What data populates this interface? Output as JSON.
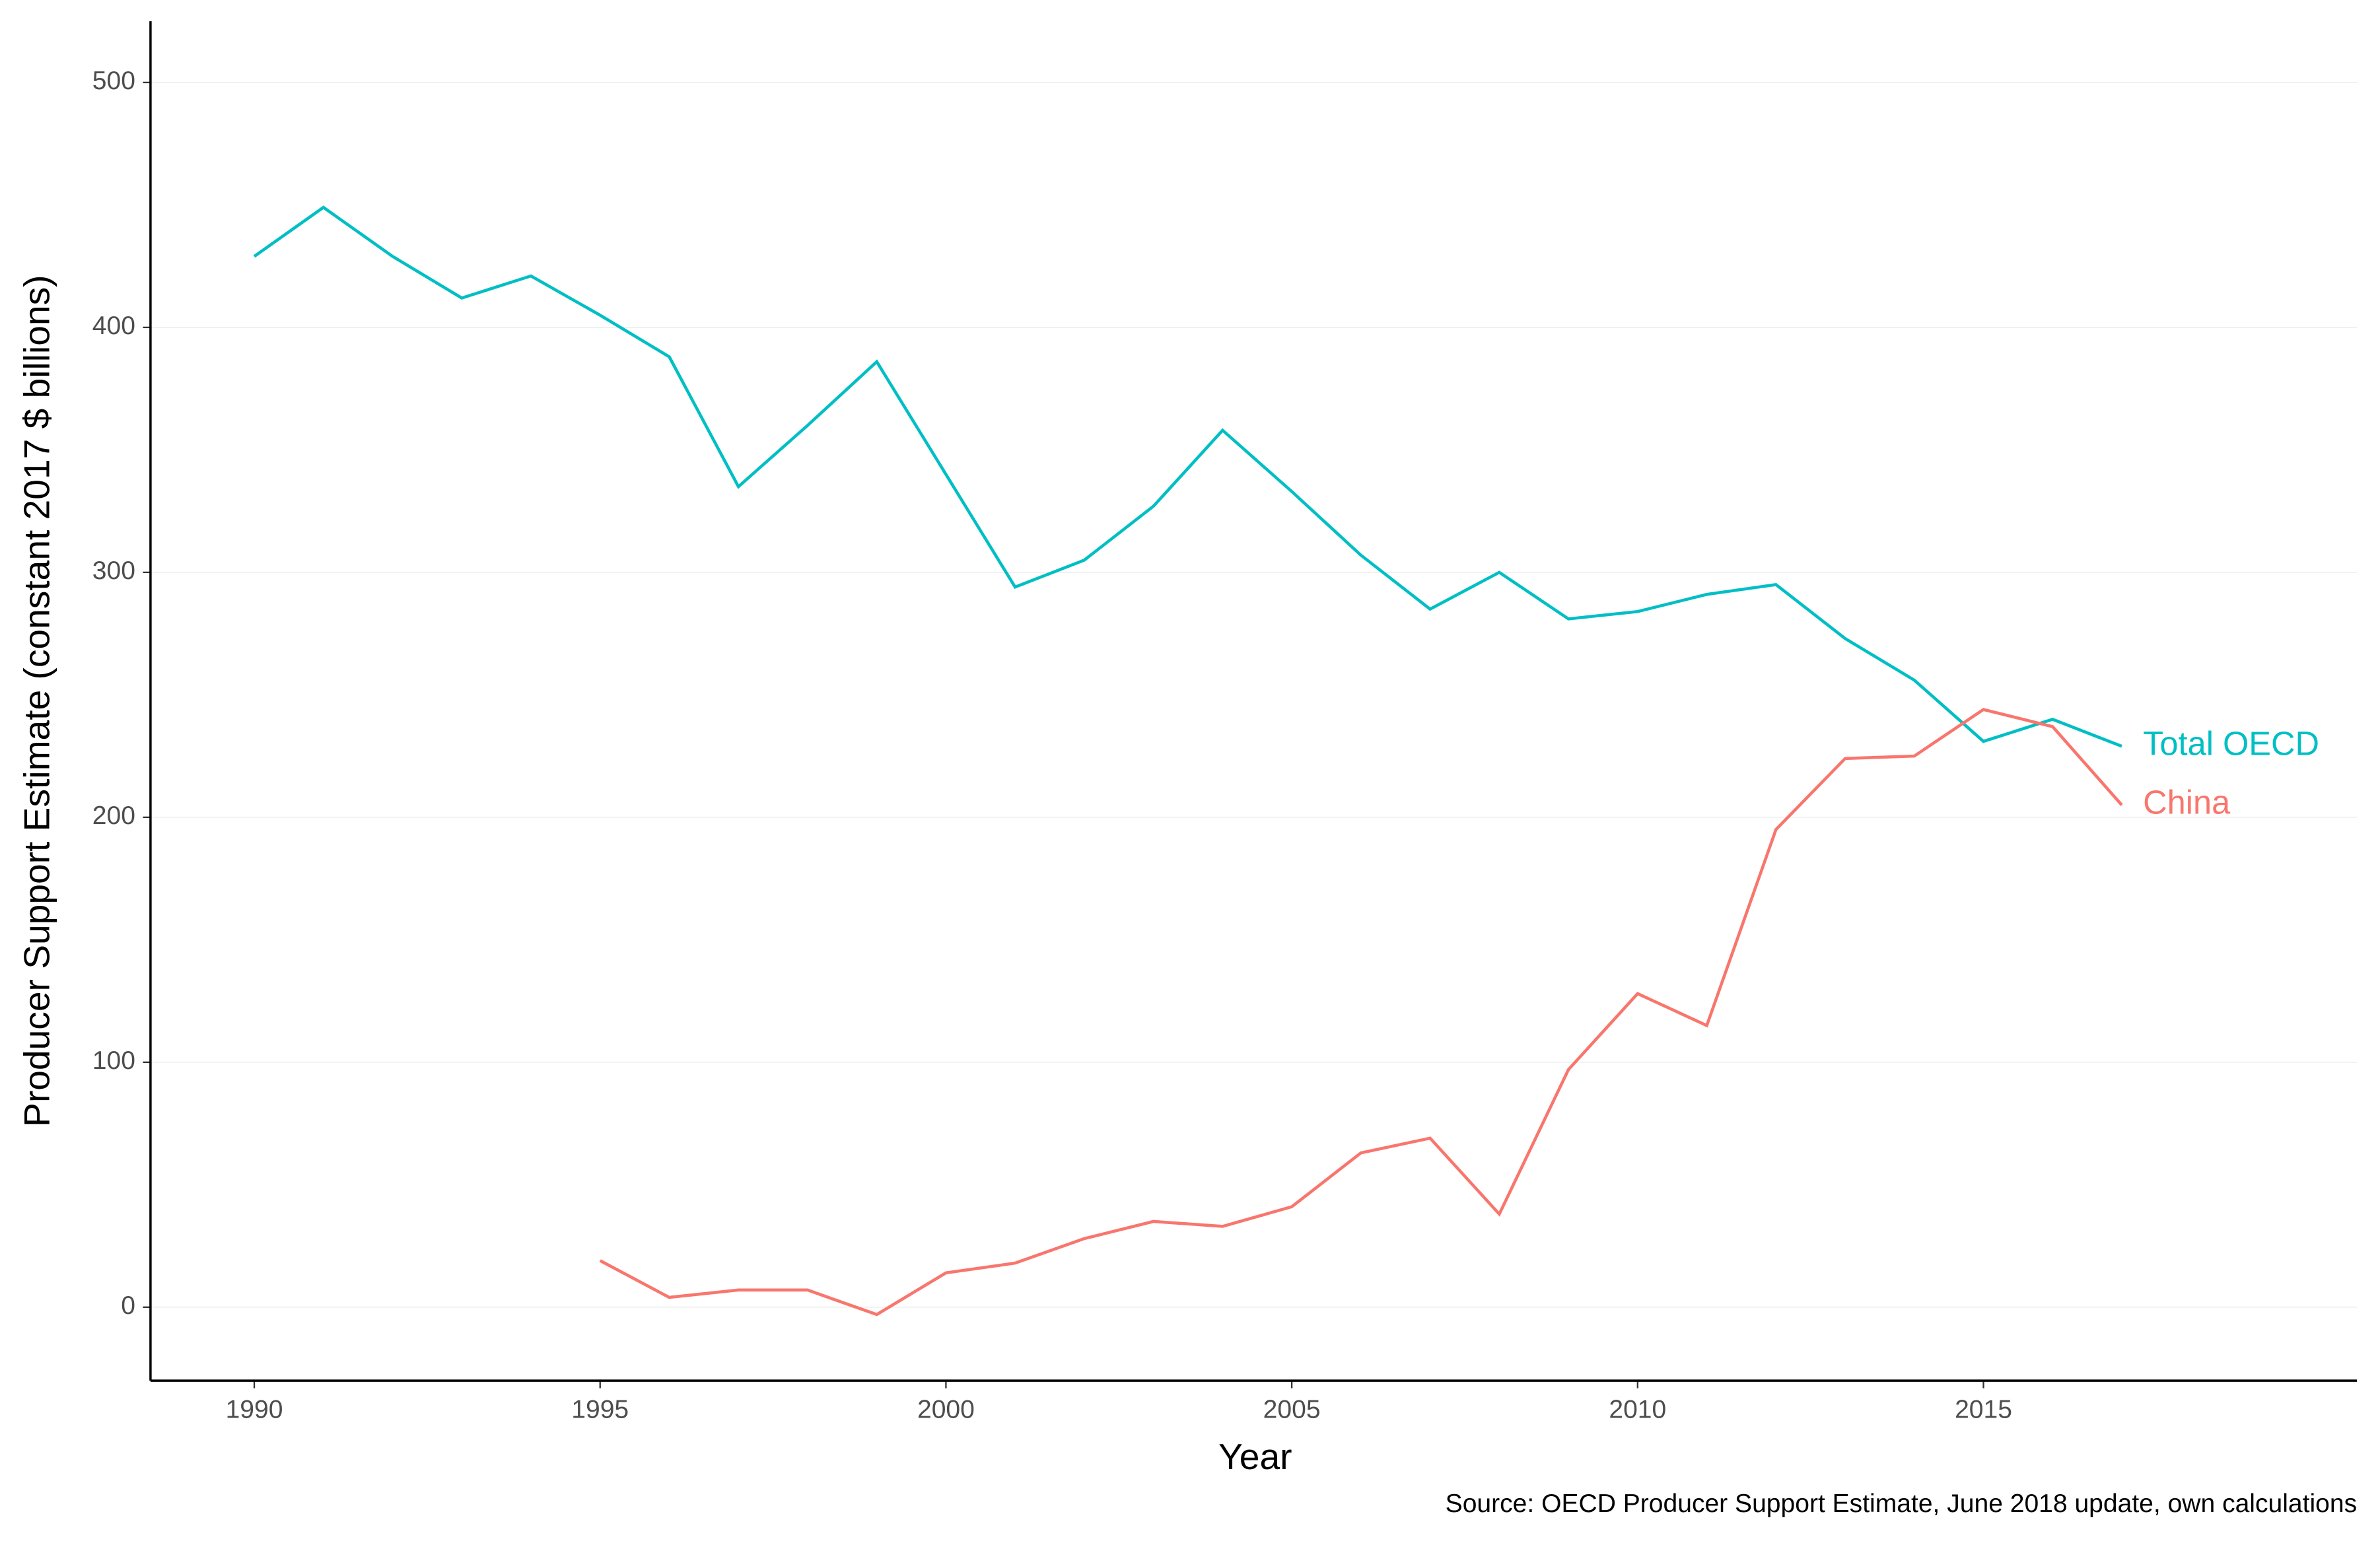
{
  "chart_data": {
    "type": "line",
    "x_label": "Year",
    "y_label": "Producer Support Estimate (constant 2017 $ billions)",
    "caption": "Source: OECD Producer Support Estimate, June 2018 update, own calculations",
    "x": [
      1990,
      1991,
      1992,
      1993,
      1994,
      1995,
      1996,
      1997,
      1998,
      1999,
      2000,
      2001,
      2002,
      2003,
      2004,
      2005,
      2006,
      2007,
      2008,
      2009,
      2010,
      2011,
      2012,
      2013,
      2014,
      2015,
      2016,
      2017
    ],
    "series": [
      {
        "name": "Total OECD",
        "color": "#00BFC4",
        "values": [
          429,
          449,
          429,
          412,
          421,
          405,
          388,
          335,
          360,
          386,
          340,
          294,
          305,
          327,
          358,
          333,
          307,
          285,
          300,
          281,
          284,
          291,
          295,
          273,
          256,
          231,
          240,
          229
        ]
      },
      {
        "name": "China",
        "color": "#F8766D",
        "values": [
          null,
          null,
          null,
          null,
          null,
          19,
          4,
          7,
          7,
          -3,
          14,
          18,
          28,
          35,
          33,
          41,
          63,
          69,
          38,
          97,
          128,
          115,
          195,
          224,
          225,
          244,
          237,
          205
        ]
      }
    ],
    "xlim": [
      1988.5,
      2020.4
    ],
    "xticks": [
      1990,
      1995,
      2000,
      2005,
      2010,
      2015
    ],
    "ylim": [
      -30,
      525
    ],
    "yticks": [
      0,
      100,
      200,
      300,
      400,
      500
    ],
    "grid": true
  }
}
